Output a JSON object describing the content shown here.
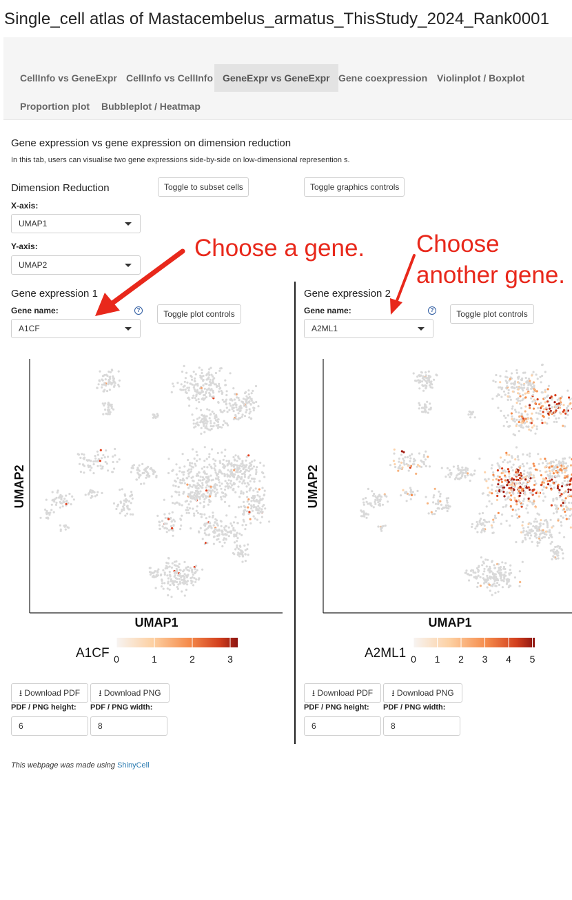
{
  "app_title": "Single_cell atlas of Mastacembelus_armatus_ThisStudy_2024_Rank0001",
  "tabs": [
    {
      "label": "CellInfo vs GeneExpr"
    },
    {
      "label": "CellInfo vs CellInfo"
    },
    {
      "label": "GeneExpr vs GeneExpr"
    },
    {
      "label": "Gene coexpression"
    },
    {
      "label": "Violinplot / Boxplot"
    },
    {
      "label": "Proportion plot"
    },
    {
      "label": "Bubbleplot / Heatmap"
    }
  ],
  "active_tab": "GeneExpr vs GeneExpr",
  "section": {
    "title": "Gene expression vs gene expression on dimension reduction",
    "description": "In this tab, users can visualise two gene expressions side-by-side on low-dimensional represention s."
  },
  "dimred": {
    "heading": "Dimension Reduction",
    "x_label": "X-axis:",
    "x_value": "UMAP1",
    "y_label": "Y-axis:",
    "y_value": "UMAP2",
    "toggle_subset_label": "Toggle to subset cells",
    "toggle_graphics_label": "Toggle graphics controls"
  },
  "annotations": {
    "left": "Choose a gene.",
    "right_line1": "Choose",
    "right_line2": "another gene."
  },
  "panel1": {
    "heading": "Gene expression 1",
    "gene_label": "Gene name:",
    "gene_value": "A1CF",
    "help_glyph": "?",
    "toggle_plot_label": "Toggle plot controls",
    "x_axis_label": "UMAP1",
    "y_axis_label": "UMAP2",
    "legend_title": "A1CF",
    "legend_ticks": [
      "0",
      "1",
      "2",
      "3"
    ],
    "legend_max": 3.2,
    "download_pdf_label": "Download PDF",
    "download_png_label": "Download PNG",
    "height_label": "PDF / PNG height:",
    "width_label": "PDF / PNG width:",
    "height_value": "6",
    "width_value": "8"
  },
  "panel2": {
    "heading": "Gene expression 2",
    "gene_label": "Gene name:",
    "gene_value": "A2ML1",
    "help_glyph": "?",
    "toggle_plot_label": "Toggle plot controls",
    "x_axis_label": "UMAP1",
    "y_axis_label": "UMAP2",
    "legend_title": "A2ML1",
    "legend_ticks": [
      "0",
      "1",
      "2",
      "3",
      "4",
      "5"
    ],
    "legend_max": 5.1,
    "download_pdf_label": "Download PDF",
    "download_png_label": "Download PNG",
    "height_label": "PDF / PNG height:",
    "width_label": "PDF / PNG width:",
    "height_value": "6",
    "width_value": "8"
  },
  "footer": {
    "text": "This webpage was made using ",
    "link_label": "ShinyCell"
  },
  "colors": {
    "annotation_red": "#e8281b",
    "gradient": [
      "#fff5eb",
      "#fdd0a2",
      "#fd8d3c",
      "#d94801",
      "#7f2704"
    ],
    "cell_gray": "#d9d9d9",
    "link": "#2a7ab0"
  }
}
